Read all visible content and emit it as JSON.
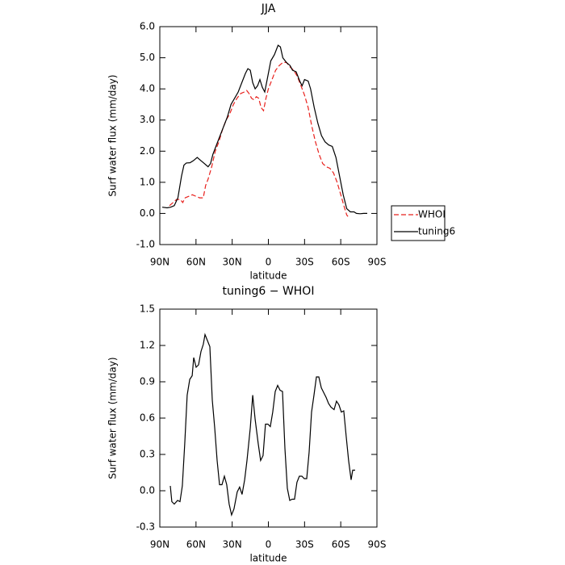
{
  "chart_data": [
    {
      "type": "line",
      "title": "JJA",
      "xlabel": "latitude",
      "ylabel": "Surf water flux (mm/day)",
      "xlim": [
        90,
        -90
      ],
      "xticks": [
        {
          "value": 90,
          "label": "90N"
        },
        {
          "value": 60,
          "label": "60N"
        },
        {
          "value": 30,
          "label": "30N"
        },
        0,
        {
          "value": -30,
          "label": "30S"
        },
        {
          "value": -60,
          "label": "60S"
        },
        {
          "value": -90,
          "label": "90S"
        }
      ],
      "ylim": [
        -1,
        6
      ],
      "yticks": [
        {
          "value": -1,
          "label": "-1.0"
        },
        {
          "value": 0,
          "label": "0.0"
        },
        {
          "value": 1,
          "label": "1.0"
        },
        {
          "value": 2,
          "label": "2.0"
        },
        {
          "value": 3,
          "label": "3.0"
        },
        {
          "value": 4,
          "label": "4.0"
        },
        {
          "value": 5,
          "label": "5.0"
        },
        {
          "value": 6,
          "label": "6.0"
        }
      ],
      "legend": "right",
      "series": [
        {
          "name": "WHOI",
          "color": "#e8201c",
          "linestyle": "dashed",
          "x": [
            82,
            79,
            76,
            73,
            71,
            69,
            66,
            63,
            60,
            57,
            54,
            52,
            50,
            47,
            44,
            41,
            38,
            35,
            32,
            29,
            26,
            23,
            20,
            18,
            16,
            14,
            12,
            10,
            8,
            6,
            4,
            2,
            0,
            -3,
            -6,
            -9,
            -12,
            -15,
            -18,
            -21,
            -24,
            -27,
            -30,
            -33,
            -36,
            -39,
            -42,
            -45,
            -48,
            -51,
            -54,
            -57,
            -60,
            -63,
            -65,
            -66
          ],
          "values": [
            0.25,
            0.35,
            0.45,
            0.45,
            0.35,
            0.5,
            0.55,
            0.6,
            0.55,
            0.5,
            0.5,
            0.9,
            1.1,
            1.5,
            2.0,
            2.3,
            2.7,
            3.0,
            3.2,
            3.5,
            3.7,
            3.85,
            3.9,
            3.95,
            3.85,
            3.7,
            3.65,
            3.75,
            3.7,
            3.4,
            3.3,
            3.7,
            4.0,
            4.3,
            4.6,
            4.75,
            4.85,
            4.85,
            4.7,
            4.6,
            4.4,
            4.1,
            3.8,
            3.4,
            2.8,
            2.3,
            1.9,
            1.6,
            1.5,
            1.45,
            1.3,
            1.0,
            0.6,
            0.2,
            -0.05,
            -0.1
          ]
        },
        {
          "name": "tuning6",
          "color": "#000000",
          "linestyle": "solid",
          "x": [
            88,
            84,
            81,
            78,
            75,
            72,
            70,
            68,
            65,
            62,
            59,
            56,
            53,
            50,
            48,
            46,
            43,
            40,
            37,
            34,
            31,
            28,
            25,
            22,
            19,
            17,
            15,
            13,
            11,
            9,
            7,
            5,
            3,
            1,
            -2,
            -5,
            -8,
            -10,
            -12,
            -15,
            -18,
            -20,
            -23,
            -26,
            -28,
            -30,
            -33,
            -35,
            -38,
            -41,
            -44,
            -47,
            -50,
            -53,
            -56,
            -59,
            -62,
            -65,
            -68,
            -71,
            -73,
            -76,
            -79,
            -82
          ],
          "values": [
            0.2,
            0.18,
            0.2,
            0.25,
            0.5,
            1.2,
            1.55,
            1.62,
            1.63,
            1.7,
            1.8,
            1.7,
            1.6,
            1.5,
            1.6,
            1.9,
            2.2,
            2.5,
            2.8,
            3.1,
            3.5,
            3.7,
            3.9,
            4.2,
            4.5,
            4.65,
            4.6,
            4.2,
            4.0,
            4.1,
            4.3,
            4.05,
            3.9,
            4.3,
            4.9,
            5.1,
            5.4,
            5.35,
            5.0,
            4.85,
            4.75,
            4.6,
            4.55,
            4.25,
            4.1,
            4.3,
            4.25,
            4.0,
            3.4,
            2.9,
            2.5,
            2.3,
            2.2,
            2.15,
            1.8,
            1.2,
            0.6,
            0.15,
            0.05,
            0.05,
            0.0,
            -0.01,
            0.0,
            0.0
          ]
        }
      ]
    },
    {
      "type": "line",
      "title": "tuning6 − WHOI",
      "xlabel": "latitude",
      "ylabel": "Surf water flux (mm/day)",
      "xlim": [
        90,
        -90
      ],
      "xticks": [
        {
          "value": 90,
          "label": "90N"
        },
        {
          "value": 60,
          "label": "60N"
        },
        {
          "value": 30,
          "label": "30N"
        },
        0,
        {
          "value": -30,
          "label": "30S"
        },
        {
          "value": -60,
          "label": "60S"
        },
        {
          "value": -90,
          "label": "90S"
        }
      ],
      "ylim": [
        -0.3,
        1.5
      ],
      "yticks": [
        -0.3,
        {
          "value": 0,
          "label": "0.0"
        },
        0.3,
        0.6,
        0.9,
        1.2,
        1.5
      ],
      "series": [
        {
          "color": "#000000",
          "linestyle": "solid",
          "x": [
            81.3,
            80,
            78,
            75.3,
            73.3,
            71.3,
            69.3,
            67.3,
            65.2,
            63.2,
            61.9,
            59.9,
            57.9,
            55.9,
            53.9,
            52.5,
            50.5,
            48.5,
            46.5,
            44.5,
            42.5,
            40.5,
            38.5,
            36.5,
            34.5,
            32.5,
            30.5,
            28.5,
            25.8,
            23.8,
            21.8,
            19.7,
            17.7,
            15,
            13,
            11,
            8.4,
            6.4,
            4.4,
            2.4,
            0.4,
            -1.6,
            -3.6,
            -5.7,
            -7.7,
            -9.7,
            -11.7,
            -13.7,
            -15.7,
            -17.7,
            -19.7,
            -21.7,
            -23.7,
            -25.7,
            -27.8,
            -29.8,
            -31.8,
            -33.8,
            -35.8,
            -37.8,
            -39.8,
            -41.8,
            -43.9,
            -45.9,
            -47.9,
            -49.9,
            -51.9,
            -54.5,
            -56.5,
            -58.5,
            -60.5,
            -62.5,
            -64.5,
            -66.5,
            -68.6,
            -69.9,
            -71.9
          ],
          "values": [
            0.04,
            -0.09,
            -0.11,
            -0.08,
            -0.09,
            0.04,
            0.39,
            0.79,
            0.92,
            0.95,
            1.1,
            1.02,
            1.04,
            1.15,
            1.21,
            1.29,
            1.24,
            1.19,
            0.75,
            0.52,
            0.25,
            0.05,
            0.05,
            0.12,
            0.05,
            -0.11,
            -0.2,
            -0.15,
            -0.01,
            0.03,
            -0.03,
            0.09,
            0.25,
            0.52,
            0.79,
            0.59,
            0.39,
            0.25,
            0.29,
            0.55,
            0.55,
            0.53,
            0.65,
            0.82,
            0.87,
            0.83,
            0.82,
            0.35,
            0.02,
            -0.08,
            -0.07,
            -0.07,
            0.07,
            0.12,
            0.12,
            0.1,
            0.1,
            0.32,
            0.65,
            0.79,
            0.94,
            0.94,
            0.85,
            0.81,
            0.77,
            0.72,
            0.69,
            0.67,
            0.74,
            0.71,
            0.65,
            0.66,
            0.45,
            0.25,
            0.09,
            0.17,
            0.17
          ]
        }
      ]
    }
  ]
}
